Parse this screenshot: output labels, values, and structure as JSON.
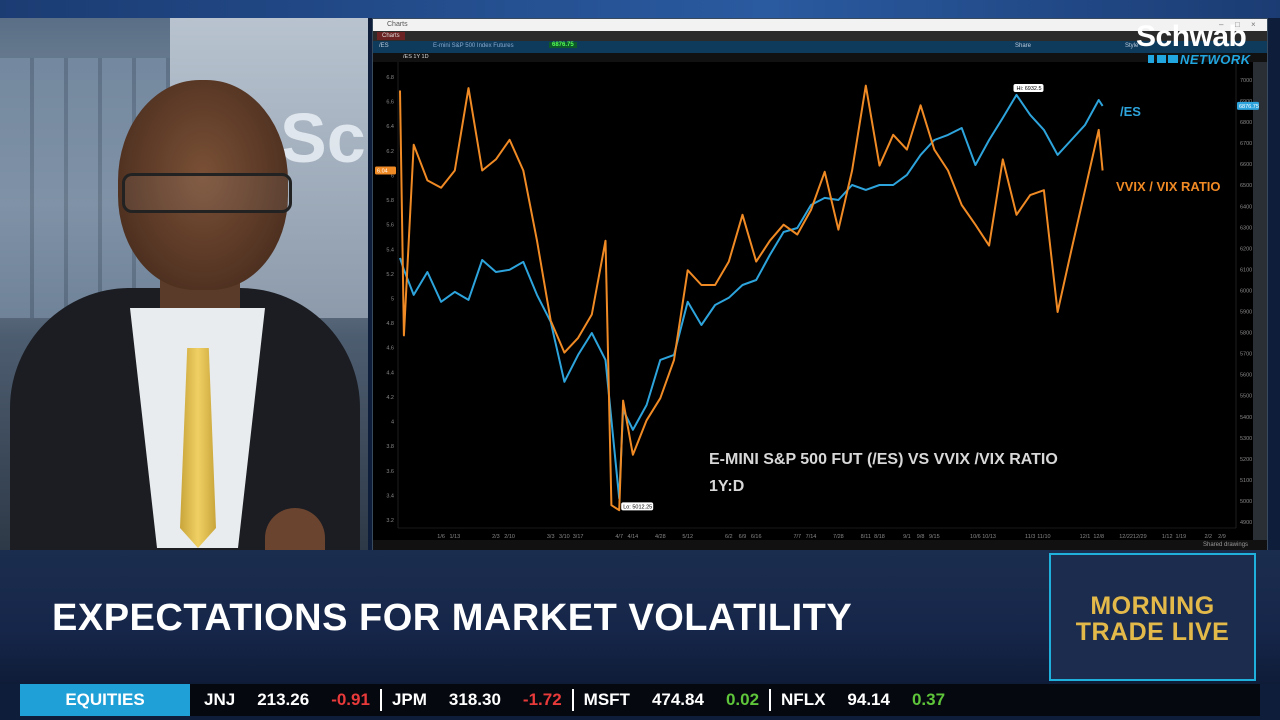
{
  "chart_window": {
    "title": "Charts",
    "tab": "Charts",
    "symbol": "/ES",
    "description": "E-mini S&P 500 Index Futures",
    "last_price": "6876.75",
    "study_label": "/ES 1Y 1D",
    "share_label": "Share",
    "style_label": "Style",
    "shared_drawings_label": "Shared drawings"
  },
  "branding": {
    "network_name": "Schwab",
    "network_sub": "NETWORK",
    "show_line1": "MORNING",
    "show_line2": "TRADE LIVE"
  },
  "annotations": {
    "es_label": "/ES",
    "ratio_label": "VVIX / VIX RATIO",
    "caption_line1": "E-MINI S&P 500 FUT (/ES) VS VVIX /VIX RATIO",
    "caption_line2": "1Y:D"
  },
  "lower_third": {
    "headline": "EXPECTATIONS FOR MARKET VOLATILITY"
  },
  "ticker": {
    "category": "EQUITIES",
    "items": [
      {
        "symbol": "JNJ",
        "price": "213.26",
        "change": "-0.91",
        "direction": "down"
      },
      {
        "symbol": "JPM",
        "price": "318.30",
        "change": "-1.72",
        "direction": "down"
      },
      {
        "symbol": "MSFT",
        "price": "474.84",
        "change": "0.02",
        "direction": "up"
      },
      {
        "symbol": "NFLX",
        "price": "94.14",
        "change": "0.37",
        "direction": "up"
      }
    ]
  },
  "chart_data": {
    "type": "line",
    "title": "E-MINI S&P 500 FUT (/ES) VS VVIX /VIX RATIO",
    "subtitle": "1Y:D",
    "x": [
      "2024-12-16",
      "2024-12-18",
      "2024-12-23",
      "2024-12-30",
      "2025-01-06",
      "2025-01-13",
      "2025-01-20",
      "2025-01-27",
      "2025-02-03",
      "2025-02-10",
      "2025-02-17",
      "2025-02-24",
      "2025-03-03",
      "2025-03-10",
      "2025-03-17",
      "2025-03-24",
      "2025-03-31",
      "2025-04-03",
      "2025-04-07",
      "2025-04-09",
      "2025-04-14",
      "2025-04-21",
      "2025-04-28",
      "2025-05-05",
      "2025-05-12",
      "2025-05-19",
      "2025-05-26",
      "2025-06-02",
      "2025-06-09",
      "2025-06-16",
      "2025-06-23",
      "2025-06-30",
      "2025-07-07",
      "2025-07-14",
      "2025-07-21",
      "2025-07-28",
      "2025-08-04",
      "2025-08-11",
      "2025-08-18",
      "2025-08-25",
      "2025-09-01",
      "2025-09-08",
      "2025-09-15",
      "2025-09-22",
      "2025-09-29",
      "2025-10-06",
      "2025-10-13",
      "2025-10-20",
      "2025-10-27",
      "2025-11-03",
      "2025-11-10",
      "2025-11-17",
      "2025-11-24",
      "2025-12-01",
      "2025-12-08",
      "2025-12-10"
    ],
    "series": [
      {
        "name": "/ES",
        "axis": "right",
        "color": "#2ea4dc",
        "values": [
          6155,
          6098,
          5979,
          6088,
          5946,
          5993,
          5955,
          6145,
          6088,
          6098,
          6136,
          5979,
          5851,
          5566,
          5694,
          5798,
          5670,
          5385,
          5012,
          5433,
          5338,
          5456,
          5670,
          5694,
          5946,
          5836,
          5931,
          5965,
          6026,
          6050,
          6169,
          6278,
          6297,
          6406,
          6440,
          6430,
          6501,
          6478,
          6501,
          6501,
          6549,
          6644,
          6715,
          6739,
          6772,
          6596,
          6715,
          6820,
          6929,
          6834,
          6763,
          6644,
          6715,
          6786,
          6905,
          6877
        ]
      },
      {
        "name": "VVIX / VIX RATIO",
        "axis": "left",
        "color": "#f08a24",
        "values": [
          6.69,
          4.7,
          6.25,
          5.96,
          5.9,
          6.04,
          6.71,
          6.04,
          6.13,
          6.29,
          6.04,
          5.47,
          4.82,
          4.56,
          4.68,
          4.87,
          5.47,
          3.32,
          3.28,
          4.17,
          3.73,
          4.01,
          4.19,
          4.5,
          5.23,
          5.11,
          5.11,
          5.3,
          5.68,
          5.3,
          5.47,
          5.6,
          5.52,
          5.72,
          6.03,
          5.56,
          6.04,
          6.73,
          6.08,
          6.33,
          6.21,
          6.57,
          6.21,
          6.04,
          5.76,
          5.6,
          5.43,
          6.13,
          5.68,
          5.84,
          5.88,
          4.89,
          5.39,
          5.88,
          6.37,
          6.04
        ]
      }
    ],
    "x_ticks": [
      {
        "label": "1/6",
        "date": "2025-01-06"
      },
      {
        "label": "1/13",
        "date": "2025-01-13"
      },
      {
        "label": "2/3",
        "date": "2025-02-03"
      },
      {
        "label": "2/10",
        "date": "2025-02-10"
      },
      {
        "label": "3/3",
        "date": "2025-03-03"
      },
      {
        "label": "3/10",
        "date": "2025-03-10"
      },
      {
        "label": "3/17",
        "date": "2025-03-17"
      },
      {
        "label": "4/7",
        "date": "2025-04-07"
      },
      {
        "label": "4/14",
        "date": "2025-04-14"
      },
      {
        "label": "4/28",
        "date": "2025-04-28"
      },
      {
        "label": "5/12",
        "date": "2025-05-12"
      },
      {
        "label": "6/2",
        "date": "2025-06-02"
      },
      {
        "label": "6/9",
        "date": "2025-06-09"
      },
      {
        "label": "6/16",
        "date": "2025-06-16"
      },
      {
        "label": "7/7",
        "date": "2025-07-07"
      },
      {
        "label": "7/14",
        "date": "2025-07-14"
      },
      {
        "label": "7/28",
        "date": "2025-07-28"
      },
      {
        "label": "8/11",
        "date": "2025-08-11"
      },
      {
        "label": "8/18",
        "date": "2025-08-18"
      },
      {
        "label": "9/1",
        "date": "2025-09-01"
      },
      {
        "label": "9/8",
        "date": "2025-09-08"
      },
      {
        "label": "9/15",
        "date": "2025-09-15"
      },
      {
        "label": "10/6",
        "date": "2025-10-06"
      },
      {
        "label": "10/13",
        "date": "2025-10-13"
      },
      {
        "label": "11/3",
        "date": "2025-11-03"
      },
      {
        "label": "11/10",
        "date": "2025-11-10"
      },
      {
        "label": "12/1",
        "date": "2025-12-01"
      },
      {
        "label": "12/8",
        "date": "2025-12-08"
      },
      {
        "label": "12/22",
        "date": "2025-12-22"
      },
      {
        "label": "12/29",
        "date": "2025-12-29"
      },
      {
        "label": "1/12",
        "date": "2026-01-12"
      },
      {
        "label": "1/19",
        "date": "2026-01-19"
      },
      {
        "label": "2/2",
        "date": "2026-02-02"
      },
      {
        "label": "2/9",
        "date": "2026-02-09"
      }
    ],
    "right_axis": {
      "ylim": [
        4900,
        7000
      ],
      "ticks": [
        7000,
        6900,
        6800,
        6700,
        6600,
        6500,
        6400,
        6300,
        6200,
        6100,
        6000,
        5900,
        5800,
        5700,
        5600,
        5500,
        5400,
        5300,
        5200,
        5100,
        5000,
        4900
      ],
      "last_tag": "6876.75"
    },
    "left_axis": {
      "ylim": [
        3.2,
        6.8
      ],
      "ticks": [
        6.8,
        6.6,
        6.4,
        6.2,
        6.0,
        5.8,
        5.6,
        5.4,
        5.2,
        5.0,
        4.8,
        4.6,
        4.4,
        4.2,
        4.0,
        3.8,
        3.6,
        3.4,
        3.2
      ],
      "last_tag": "6.04"
    },
    "markers": {
      "high": "Hi: 6932.5",
      "low": "Lo: 5012.25"
    },
    "grid": false,
    "background": "#000000"
  }
}
